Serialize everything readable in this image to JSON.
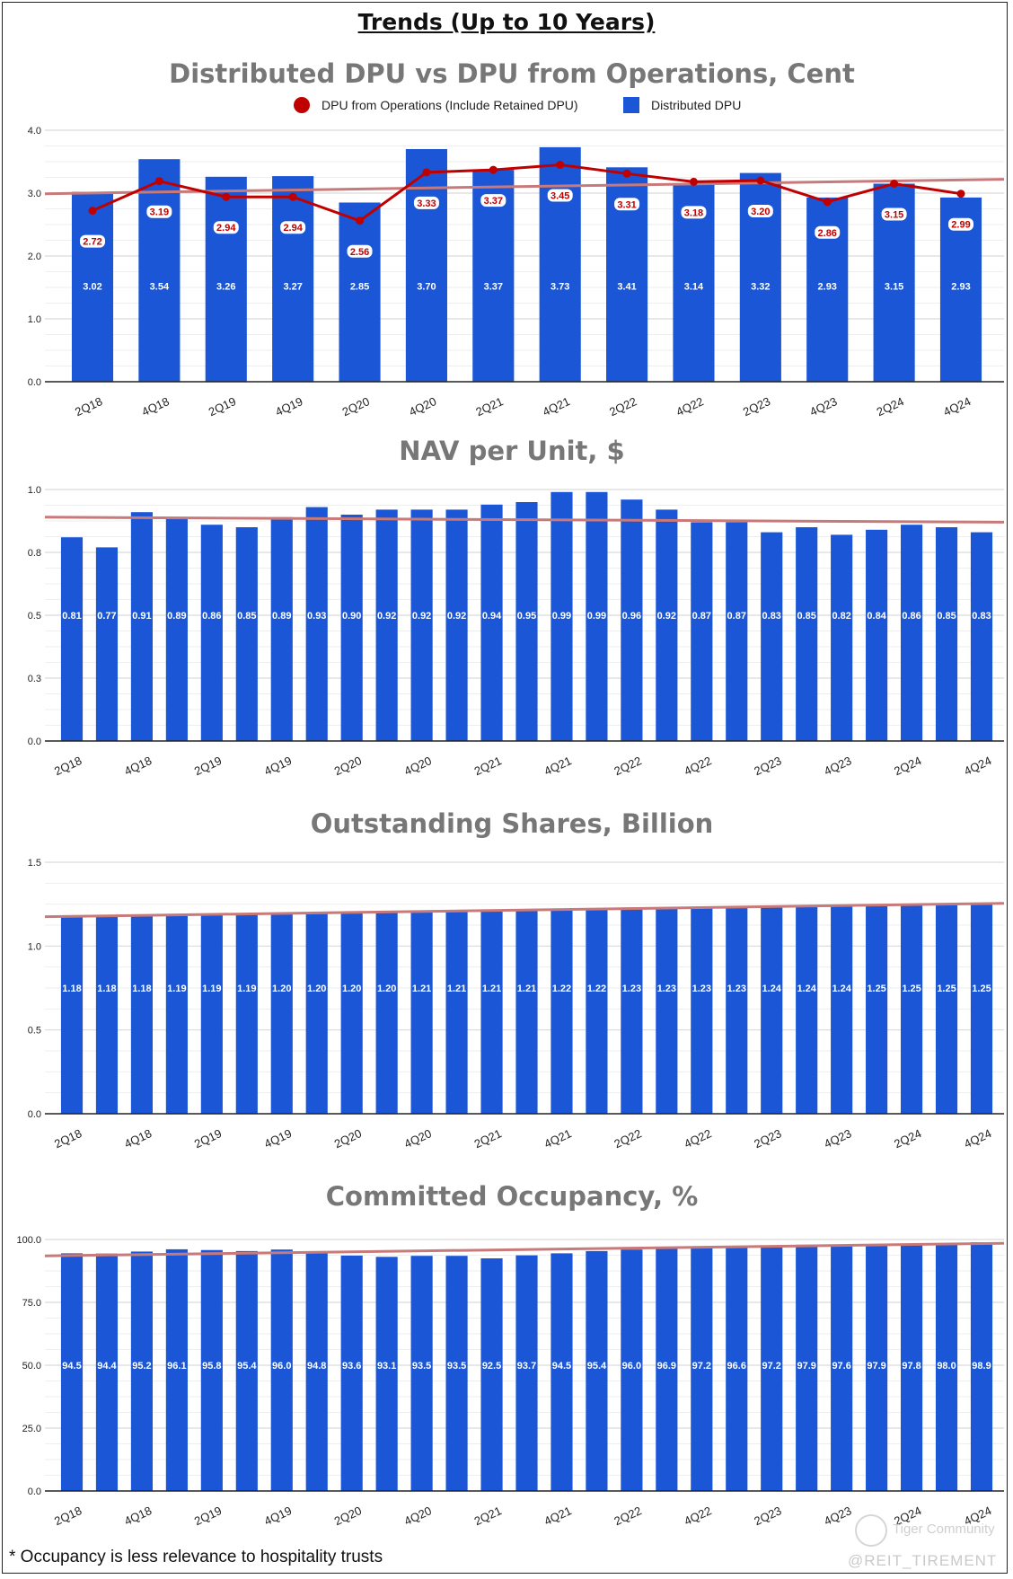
{
  "page_title": "Trends (Up to 10 Years)",
  "footnote": "* Occupancy is less relevance to hospitality trusts",
  "credit": "@REIT_TIREMENT",
  "watermark": "Tiger Community",
  "colors": {
    "bar": "#1a56d6",
    "line": "#c00000",
    "trend": "#c87a7a",
    "grid": "#d9d9d9",
    "title": "#777777"
  },
  "chart_data": [
    {
      "type": "bar",
      "title": "Distributed DPU vs DPU from Operations, Cent",
      "categories": [
        "2Q18",
        "4Q18",
        "2Q19",
        "4Q19",
        "2Q20",
        "4Q20",
        "2Q21",
        "4Q21",
        "2Q22",
        "4Q22",
        "2Q23",
        "4Q23",
        "2Q24",
        "4Q24"
      ],
      "x_tick_labels": [
        "2Q18",
        "4Q18",
        "2Q19",
        "4Q19",
        "2Q20",
        "4Q20",
        "2Q21",
        "4Q21",
        "2Q22",
        "4Q22",
        "2Q23",
        "4Q23",
        "2Q24",
        "4Q24"
      ],
      "series": [
        {
          "name": "Distributed DPU",
          "kind": "bar",
          "values": [
            3.02,
            3.54,
            3.26,
            3.27,
            2.85,
            3.7,
            3.37,
            3.73,
            3.41,
            3.14,
            3.32,
            2.93,
            3.15,
            2.93
          ]
        },
        {
          "name": "DPU from Operations (Include Retained DPU)",
          "kind": "line",
          "values": [
            2.72,
            3.19,
            2.94,
            2.94,
            2.56,
            3.33,
            3.37,
            3.45,
            3.31,
            3.18,
            3.2,
            2.86,
            3.15,
            2.99
          ]
        }
      ],
      "legend": [
        "DPU from Operations (Include Retained DPU)",
        "Distributed DPU"
      ],
      "trendline": [
        2.99,
        3.22
      ],
      "ylim": [
        0,
        4
      ],
      "yticks": [
        "0.0",
        "1.0",
        "2.0",
        "3.0",
        "4.0"
      ],
      "label_decimals": 2,
      "xlabel": "",
      "ylabel": ""
    },
    {
      "type": "bar",
      "title": "NAV per Unit, $",
      "categories": [
        "2Q18",
        "3Q18",
        "4Q18",
        "1Q19",
        "2Q19",
        "3Q19",
        "4Q19",
        "1Q20",
        "2Q20",
        "3Q20",
        "4Q20",
        "1Q21",
        "2Q21",
        "3Q21",
        "4Q21",
        "1Q22",
        "2Q22",
        "3Q22",
        "4Q22",
        "1Q23",
        "2Q23",
        "3Q23",
        "4Q23",
        "1Q24",
        "2Q24",
        "3Q24",
        "4Q24"
      ],
      "x_tick_labels": [
        "2Q18",
        "4Q18",
        "2Q19",
        "4Q19",
        "2Q20",
        "4Q20",
        "2Q21",
        "4Q21",
        "2Q22",
        "4Q22",
        "2Q23",
        "4Q23",
        "2Q24",
        "4Q24"
      ],
      "series": [
        {
          "name": "NAV per Unit",
          "kind": "bar",
          "values": [
            0.81,
            0.77,
            0.91,
            0.89,
            0.86,
            0.85,
            0.89,
            0.93,
            0.9,
            0.92,
            0.92,
            0.92,
            0.94,
            0.95,
            0.99,
            0.99,
            0.96,
            0.92,
            0.87,
            0.87,
            0.83,
            0.85,
            0.82,
            0.84,
            0.86,
            0.85,
            0.83
          ]
        }
      ],
      "trendline": [
        0.89,
        0.87
      ],
      "ylim": [
        0,
        1
      ],
      "yticks": [
        "0.0",
        "0.3",
        "0.5",
        "0.8",
        "1.0"
      ],
      "label_decimals": 2,
      "xlabel": "",
      "ylabel": ""
    },
    {
      "type": "bar",
      "title": "Outstanding Shares, Billion",
      "categories": [
        "2Q18",
        "3Q18",
        "4Q18",
        "1Q19",
        "2Q19",
        "3Q19",
        "4Q19",
        "1Q20",
        "2Q20",
        "3Q20",
        "4Q20",
        "1Q21",
        "2Q21",
        "3Q21",
        "4Q21",
        "1Q22",
        "2Q22",
        "3Q22",
        "4Q22",
        "1Q23",
        "2Q23",
        "3Q23",
        "4Q23",
        "1Q24",
        "2Q24",
        "3Q24",
        "4Q24"
      ],
      "x_tick_labels": [
        "2Q18",
        "4Q18",
        "2Q19",
        "4Q19",
        "2Q20",
        "4Q20",
        "2Q21",
        "4Q21",
        "2Q22",
        "4Q22",
        "2Q23",
        "4Q23",
        "2Q24",
        "4Q24"
      ],
      "series": [
        {
          "name": "Outstanding Shares",
          "kind": "bar",
          "values": [
            1.18,
            1.18,
            1.18,
            1.19,
            1.19,
            1.19,
            1.2,
            1.2,
            1.2,
            1.2,
            1.21,
            1.21,
            1.21,
            1.21,
            1.22,
            1.22,
            1.23,
            1.23,
            1.23,
            1.23,
            1.24,
            1.24,
            1.24,
            1.25,
            1.25,
            1.25,
            1.25
          ]
        }
      ],
      "trendline": [
        1.175,
        1.255
      ],
      "ylim": [
        0,
        1.5
      ],
      "yticks": [
        "0.0",
        "0.5",
        "1.0",
        "1.5"
      ],
      "label_decimals": 2,
      "xlabel": "",
      "ylabel": ""
    },
    {
      "type": "bar",
      "title": "Committed Occupancy, %",
      "categories": [
        "2Q18",
        "3Q18",
        "4Q18",
        "1Q19",
        "2Q19",
        "3Q19",
        "4Q19",
        "1Q20",
        "2Q20",
        "3Q20",
        "4Q20",
        "1Q21",
        "2Q21",
        "3Q21",
        "4Q21",
        "1Q22",
        "2Q22",
        "3Q22",
        "4Q22",
        "1Q23",
        "2Q23",
        "3Q23",
        "4Q23",
        "1Q24",
        "2Q24",
        "3Q24",
        "4Q24"
      ],
      "x_tick_labels": [
        "2Q18",
        "4Q18",
        "2Q19",
        "4Q19",
        "2Q20",
        "4Q20",
        "2Q21",
        "4Q21",
        "2Q22",
        "4Q22",
        "2Q23",
        "4Q23",
        "2Q24",
        "4Q24"
      ],
      "series": [
        {
          "name": "Committed Occupancy",
          "kind": "bar",
          "values": [
            94.5,
            94.4,
            95.2,
            96.1,
            95.8,
            95.4,
            96.0,
            94.8,
            93.6,
            93.1,
            93.5,
            93.5,
            92.5,
            93.7,
            94.5,
            95.4,
            96.0,
            96.9,
            97.2,
            96.6,
            97.2,
            97.9,
            97.6,
            97.9,
            97.8,
            98.0,
            98.9
          ]
        }
      ],
      "trendline": [
        93.5,
        98.5
      ],
      "ylim": [
        0,
        100
      ],
      "yticks": [
        "0.0",
        "25.0",
        "50.0",
        "75.0",
        "100.0"
      ],
      "label_decimals": 1,
      "xlabel": "",
      "ylabel": ""
    }
  ]
}
